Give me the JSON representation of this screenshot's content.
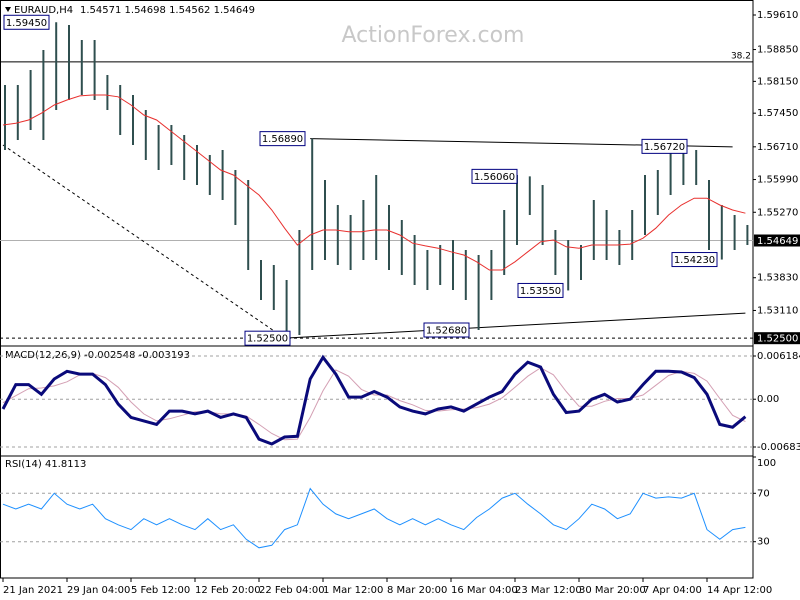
{
  "chart_data": [
    {
      "type": "ohlc",
      "title": "EURAUD,H4",
      "subtitle": "1.54571 1.54698 1.54562 1.54649",
      "watermark": "ActionForex.com",
      "categories": [
        "21 Jan 2021",
        null,
        null,
        null,
        null,
        "29 Jan 04:00",
        null,
        null,
        null,
        null,
        "5 Feb 12:00",
        null,
        null,
        null,
        null,
        "12 Feb 20:00",
        null,
        null,
        null,
        null,
        "22 Feb 04:00",
        null,
        null,
        null,
        null,
        "1 Mar 12:00",
        null,
        null,
        null,
        null,
        "8 Mar 20:00",
        null,
        null,
        null,
        null,
        "16 Mar 04:00",
        null,
        null,
        null,
        null,
        "23 Mar 12:00",
        null,
        null,
        null,
        null,
        "30 Mar 20:00",
        null,
        null,
        null,
        null,
        "7 Apr 04:00",
        null,
        null,
        null,
        null,
        "14 Apr 12:00",
        null,
        null,
        null
      ],
      "high": [
        1.5807,
        1.5807,
        1.584,
        1.5884,
        1.5945,
        1.5939,
        1.5906,
        1.5906,
        1.5829,
        1.5807,
        1.5785,
        1.5752,
        1.5719,
        1.5719,
        1.5697,
        1.5675,
        1.5653,
        1.5664,
        1.562,
        1.5598,
        1.5422,
        1.5411,
        1.5378,
        1.5488,
        1.5689,
        1.5598,
        1.5543,
        1.5521,
        1.5554,
        1.5609,
        1.5543,
        1.551,
        1.5477,
        1.5444,
        1.5455,
        1.5466,
        1.5444,
        1.5433,
        1.5444,
        1.5532,
        1.5609,
        1.5606,
        1.5587,
        1.5488,
        1.5466,
        1.5455,
        1.5554,
        1.5532,
        1.5488,
        1.5532,
        1.5609,
        1.562,
        1.5664,
        1.5672,
        1.5664,
        1.5598,
        1.5543,
        1.5521,
        1.5499
      ],
      "low": [
        1.5664,
        1.5686,
        1.5708,
        1.5686,
        1.5752,
        1.5774,
        1.5785,
        1.5774,
        1.5752,
        1.5697,
        1.5675,
        1.5642,
        1.562,
        1.5631,
        1.5598,
        1.5587,
        1.5565,
        1.5554,
        1.5499,
        1.54,
        1.5334,
        1.5312,
        1.525,
        1.5257,
        1.54,
        1.5422,
        1.5411,
        1.54,
        1.5422,
        1.5422,
        1.54,
        1.5389,
        1.5367,
        1.5356,
        1.5367,
        1.5356,
        1.5334,
        1.5268,
        1.5334,
        1.5389,
        1.5455,
        1.5521,
        1.5455,
        1.5389,
        1.5355,
        1.5378,
        1.5422,
        1.5422,
        1.5411,
        1.5422,
        1.5477,
        1.5521,
        1.5565,
        1.5587,
        1.5587,
        1.5444,
        1.5423,
        1.5444,
        1.5455
      ],
      "color": "#2f4f4f",
      "ma": {
        "color": "#e8312f",
        "values": [
          1.5719,
          1.5723,
          1.573,
          1.5745,
          1.5763,
          1.5774,
          1.5783,
          1.5785,
          1.5785,
          1.5781,
          1.5763,
          1.5741,
          1.573,
          1.5708,
          1.5686,
          1.5664,
          1.5642,
          1.562,
          1.5609,
          1.5587,
          1.5565,
          1.5532,
          1.5492,
          1.5455,
          1.5477,
          1.5488,
          1.5488,
          1.5484,
          1.5484,
          1.5488,
          1.5488,
          1.5477,
          1.5459,
          1.5453,
          1.5448,
          1.544,
          1.5433,
          1.5418,
          1.54,
          1.54,
          1.5418,
          1.544,
          1.5462,
          1.5466,
          1.5451,
          1.5448,
          1.5455,
          1.5455,
          1.5455,
          1.5457,
          1.547,
          1.5492,
          1.5521,
          1.5543,
          1.5558,
          1.5558,
          1.5543,
          1.5532,
          1.5525
        ]
      },
      "ylim": [
        1.5235,
        1.5994
      ],
      "yticks": [
        {
          "value": 1.5961,
          "label": "1.59610"
        },
        {
          "value": 1.5885,
          "label": "1.58850"
        },
        {
          "value": 1.5815,
          "label": "1.58150"
        },
        {
          "value": 1.5745,
          "label": "1.57450"
        },
        {
          "value": 1.5671,
          "label": "1.56710"
        },
        {
          "value": 1.5599,
          "label": "1.55990"
        },
        {
          "value": 1.5527,
          "label": "1.55270"
        },
        {
          "value": 1.5383,
          "label": "1.53830"
        },
        {
          "value": 1.5311,
          "label": "1.53110"
        }
      ],
      "last_price": {
        "value": 1.54649,
        "label": "1.54649"
      },
      "level": {
        "value": 1.525,
        "label": "1.52500"
      },
      "fib": {
        "value": 1.5858,
        "label": "38.2"
      },
      "trendlines": [
        {
          "x": [
            24,
            57
          ],
          "y": [
            1.5689,
            1.5671
          ]
        },
        {
          "x": [
            22,
            58
          ],
          "y": [
            1.525,
            1.5305
          ]
        },
        {
          "x": [
            0,
            22
          ],
          "y": [
            1.5675,
            1.525
          ],
          "dashed": true
        }
      ],
      "annotations": [
        {
          "value": 1.5945,
          "label": "1.59450"
        },
        {
          "value": 1.5689,
          "label": "1.56890"
        },
        {
          "value": 1.5606,
          "label": "1.56060"
        },
        {
          "value": 1.5672,
          "label": "1.56720"
        },
        {
          "value": 1.5423,
          "label": "1.54230"
        },
        {
          "value": 1.5355,
          "label": "1.53550"
        },
        {
          "value": 1.5268,
          "label": "1.52680"
        },
        {
          "value": 1.525,
          "label": "1.52500"
        }
      ]
    },
    {
      "type": "macd",
      "title": "MACD(12,26,9) -0.002548 -0.003193",
      "series": [
        {
          "color": "#0a0a7a",
          "values": [
            -0.0014,
            0.0021,
            0.0021,
            0.0007,
            0.0029,
            0.004,
            0.0036,
            0.0036,
            0.0021,
            -0.0007,
            -0.0026,
            -0.0031,
            -0.0036,
            -0.0017,
            -0.0017,
            -0.0021,
            -0.0017,
            -0.0026,
            -0.0021,
            -0.0026,
            -0.0057,
            -0.0064,
            -0.0054,
            -0.0053,
            0.0029,
            0.006,
            0.0036,
            0.0003,
            0.0003,
            0.0011,
            0.0003,
            -0.0011,
            -0.0017,
            -0.0021,
            -0.0014,
            -0.0011,
            -0.0017,
            -0.0007,
            0.0003,
            0.0011,
            0.0036,
            0.0053,
            0.0046,
            0.0007,
            -0.0019,
            -0.0017,
            0,
            0.0007,
            -0.0004,
            0,
            0.0021,
            0.004,
            0.004,
            0.0039,
            0.0031,
            0.0007,
            -0.0036,
            -0.004,
            -0.0025
          ]
        },
        {
          "color": "#d4a0b4",
          "values": [
            -0.0005,
            0.0005,
            0.0015,
            0.0016,
            0.0019,
            0.0025,
            0.0035,
            0.0037,
            0.0031,
            0.0017,
            -0.0004,
            -0.0021,
            -0.0031,
            -0.0028,
            -0.0023,
            -0.0018,
            -0.0018,
            -0.0021,
            -0.0021,
            -0.0024,
            -0.0036,
            -0.0049,
            -0.0058,
            -0.0057,
            -0.0026,
            0.0012,
            0.0042,
            0.0033,
            0.0014,
            0.0006,
            0.0006,
            -0.0002,
            -0.0008,
            -0.0016,
            -0.0017,
            -0.0015,
            -0.0014,
            -0.0012,
            -0.0007,
            0.0002,
            0.0017,
            0.0033,
            0.0045,
            0.0035,
            0.0011,
            -0.001,
            -0.001,
            -0.0003,
            0.0001,
            0.0001,
            0.0006,
            0.002,
            0.0034,
            0.004,
            0.0037,
            0.0026,
            0.0001,
            -0.0023,
            -0.0032
          ]
        }
      ],
      "ylim": [
        -0.00798,
        0.00733
      ],
      "yticks": [
        0.006184,
        {
          "value": 0,
          "label": "0.00"
        },
        -0.006837
      ],
      "grid": true
    },
    {
      "type": "line",
      "title": "RSI(14) 41.8113",
      "color": "#1e90ff",
      "values": [
        61,
        57,
        61,
        57,
        70,
        61,
        57,
        61,
        49,
        44,
        40,
        49,
        44,
        49,
        44,
        40,
        49,
        40,
        44,
        32,
        25,
        27,
        40,
        44,
        74,
        61,
        53,
        49,
        53,
        57,
        49,
        44,
        49,
        44,
        49,
        44,
        40,
        50,
        57,
        66,
        70,
        61,
        53,
        44,
        40,
        49,
        61,
        57,
        49,
        53,
        70,
        66,
        67,
        66,
        70,
        40,
        32,
        40,
        41.8
      ],
      "ylim": [
        0,
        100
      ],
      "yticks": [
        100,
        70,
        30
      ],
      "grid": true
    }
  ]
}
